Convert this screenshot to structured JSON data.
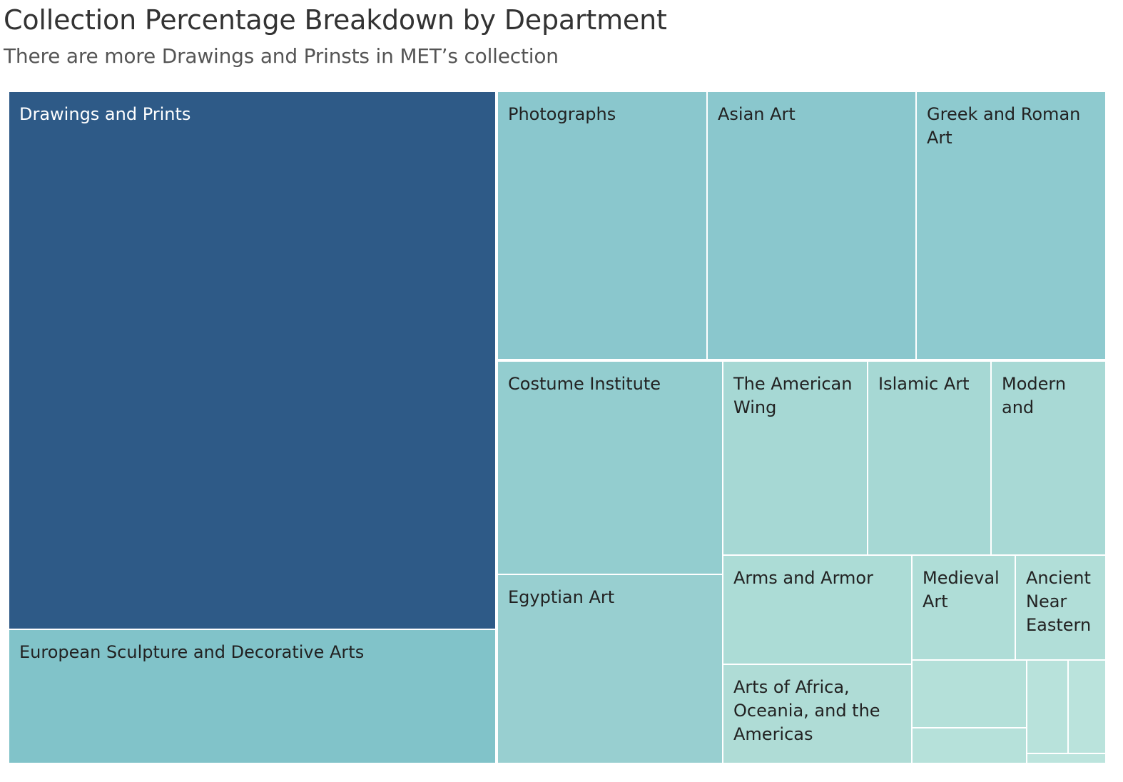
{
  "title": "Collection Percentage Breakdown by Department",
  "subtitle": "There are more Drawings and Prinsts in MET’s collection",
  "chart_data": {
    "type": "treemap",
    "items": [
      {
        "name": "Drawings and Prints",
        "label_lines": [
          "Drawings and Prints"
        ],
        "color": "#2e5a87"
      },
      {
        "name": "European Sculpture and Decorative Arts",
        "label_lines": [
          "European Sculpture and Decorative Arts"
        ],
        "color": "#81c3c9"
      },
      {
        "name": "Photographs",
        "label_lines": [
          "Photographs"
        ],
        "color": "#8ac7cd"
      },
      {
        "name": "Asian Art",
        "label_lines": [
          "Asian Art"
        ],
        "color": "#8ac7cd"
      },
      {
        "name": "Greek and Roman Art",
        "label_lines": [
          "Greek and Roman",
          "Art"
        ],
        "color": "#8ecacf"
      },
      {
        "name": "Costume Institute",
        "label_lines": [
          "Costume Institute"
        ],
        "color": "#93cdcf"
      },
      {
        "name": "Egyptian Art",
        "label_lines": [
          "Egyptian Art"
        ],
        "color": "#98cfd0"
      },
      {
        "name": "The American Wing",
        "label_lines": [
          "The American",
          "Wing"
        ],
        "color": "#a6d8d4"
      },
      {
        "name": "Islamic Art",
        "label_lines": [
          "Islamic Art"
        ],
        "color": "#a6d8d4"
      },
      {
        "name": "Modern and",
        "label_lines": [
          "Modern",
          "and"
        ],
        "color": "#a8d9d5"
      },
      {
        "name": "Arms and Armor",
        "label_lines": [
          "Arms and Armor"
        ],
        "color": "#acdcd6"
      },
      {
        "name": "Medieval Art",
        "label_lines": [
          "Medieval",
          "Art"
        ],
        "color": "#afddd7"
      },
      {
        "name": "Ancient Near Eastern",
        "label_lines": [
          "Ancient",
          "Near",
          "Eastern"
        ],
        "color": "#b1ded8"
      },
      {
        "name": "Arts of Africa, Oceania, and the Americas",
        "label_lines": [
          "Arts of Africa,",
          "Oceania, and the",
          "Americas"
        ],
        "color": "#afdcd6"
      },
      {
        "name": "",
        "label_lines": [],
        "color": "#b4e0d9"
      },
      {
        "name": "",
        "label_lines": [],
        "color": "#b6e1da"
      },
      {
        "name": "",
        "label_lines": [],
        "color": "#b8e2db"
      },
      {
        "name": "",
        "label_lines": [],
        "color": "#bae3dc"
      },
      {
        "name": "",
        "label_lines": [],
        "color": "#bce4dd"
      }
    ],
    "label_color_dark_bg": "#ffffff",
    "label_color_light_bg": "#222222"
  }
}
